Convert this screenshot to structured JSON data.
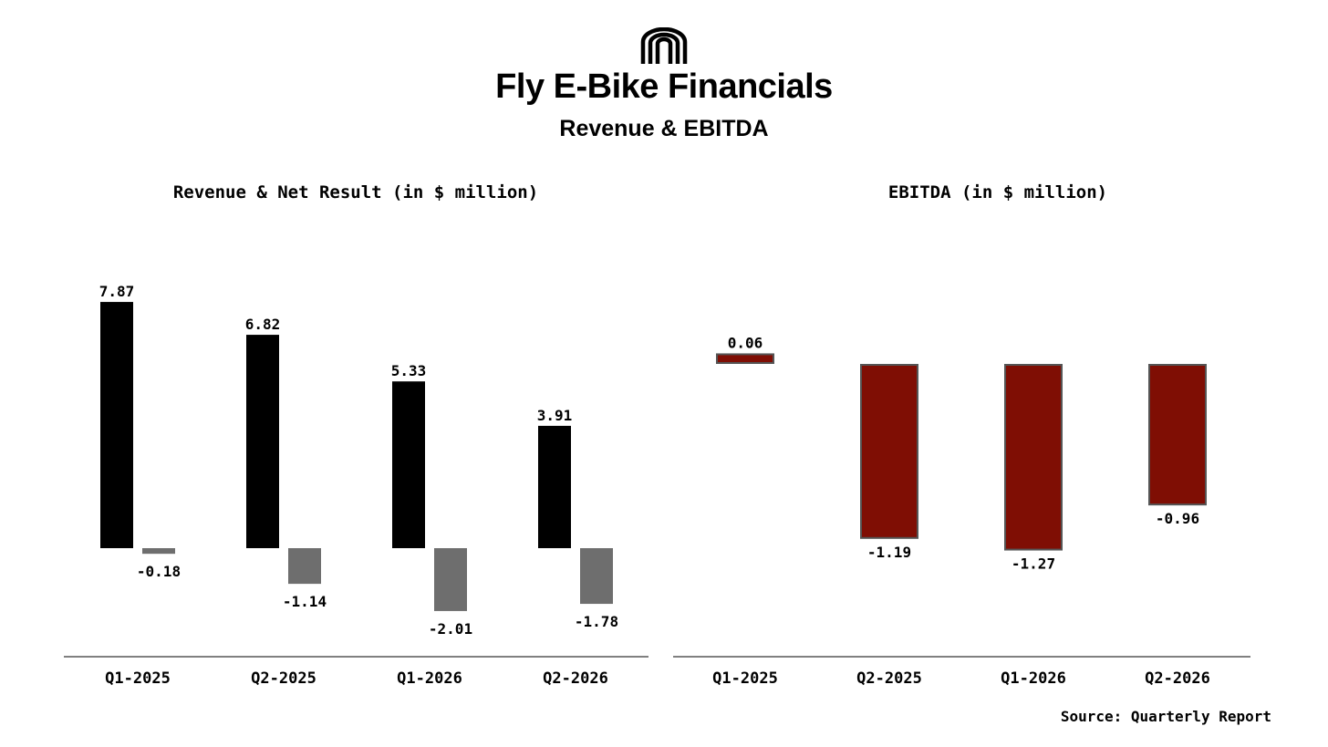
{
  "header": {
    "title": "Fly E-Bike Financials",
    "subtitle": "Revenue & EBITDA"
  },
  "footer": {
    "source": "Source: Quarterly  Report"
  },
  "colors": {
    "revenue": "#000000",
    "net_result": "#6e6e6e",
    "ebitda": "#7f0e04",
    "ebitda_edge": "#555555"
  },
  "chart_data": [
    {
      "type": "bar",
      "title": "Revenue & Net Result (in $ million)",
      "categories": [
        "Q1-2025",
        "Q2-2025",
        "Q1-2026",
        "Q2-2026"
      ],
      "series": [
        {
          "name": "Revenue",
          "values": [
            7.87,
            6.82,
            5.33,
            3.91
          ]
        },
        {
          "name": "Net Result",
          "values": [
            -0.18,
            -1.14,
            -2.01,
            -1.78
          ]
        }
      ],
      "data_labels": {
        "Revenue": [
          "7.87",
          "6.82",
          "5.33",
          "3.91"
        ],
        "Net Result": [
          "-0.18",
          "-1.14",
          "-2.01",
          "-1.78"
        ]
      },
      "xlabel": "",
      "ylabel": "",
      "grid": false
    },
    {
      "type": "bar",
      "title": "EBITDA (in $ million)",
      "categories": [
        "Q1-2025",
        "Q2-2025",
        "Q1-2026",
        "Q2-2026"
      ],
      "series": [
        {
          "name": "EBITDA",
          "values": [
            0.06,
            -1.19,
            -1.27,
            -0.96
          ]
        }
      ],
      "data_labels": {
        "EBITDA": [
          "0.06",
          "-1.19",
          "-1.27",
          "-0.96"
        ]
      },
      "xlabel": "",
      "ylabel": "",
      "grid": false
    }
  ]
}
